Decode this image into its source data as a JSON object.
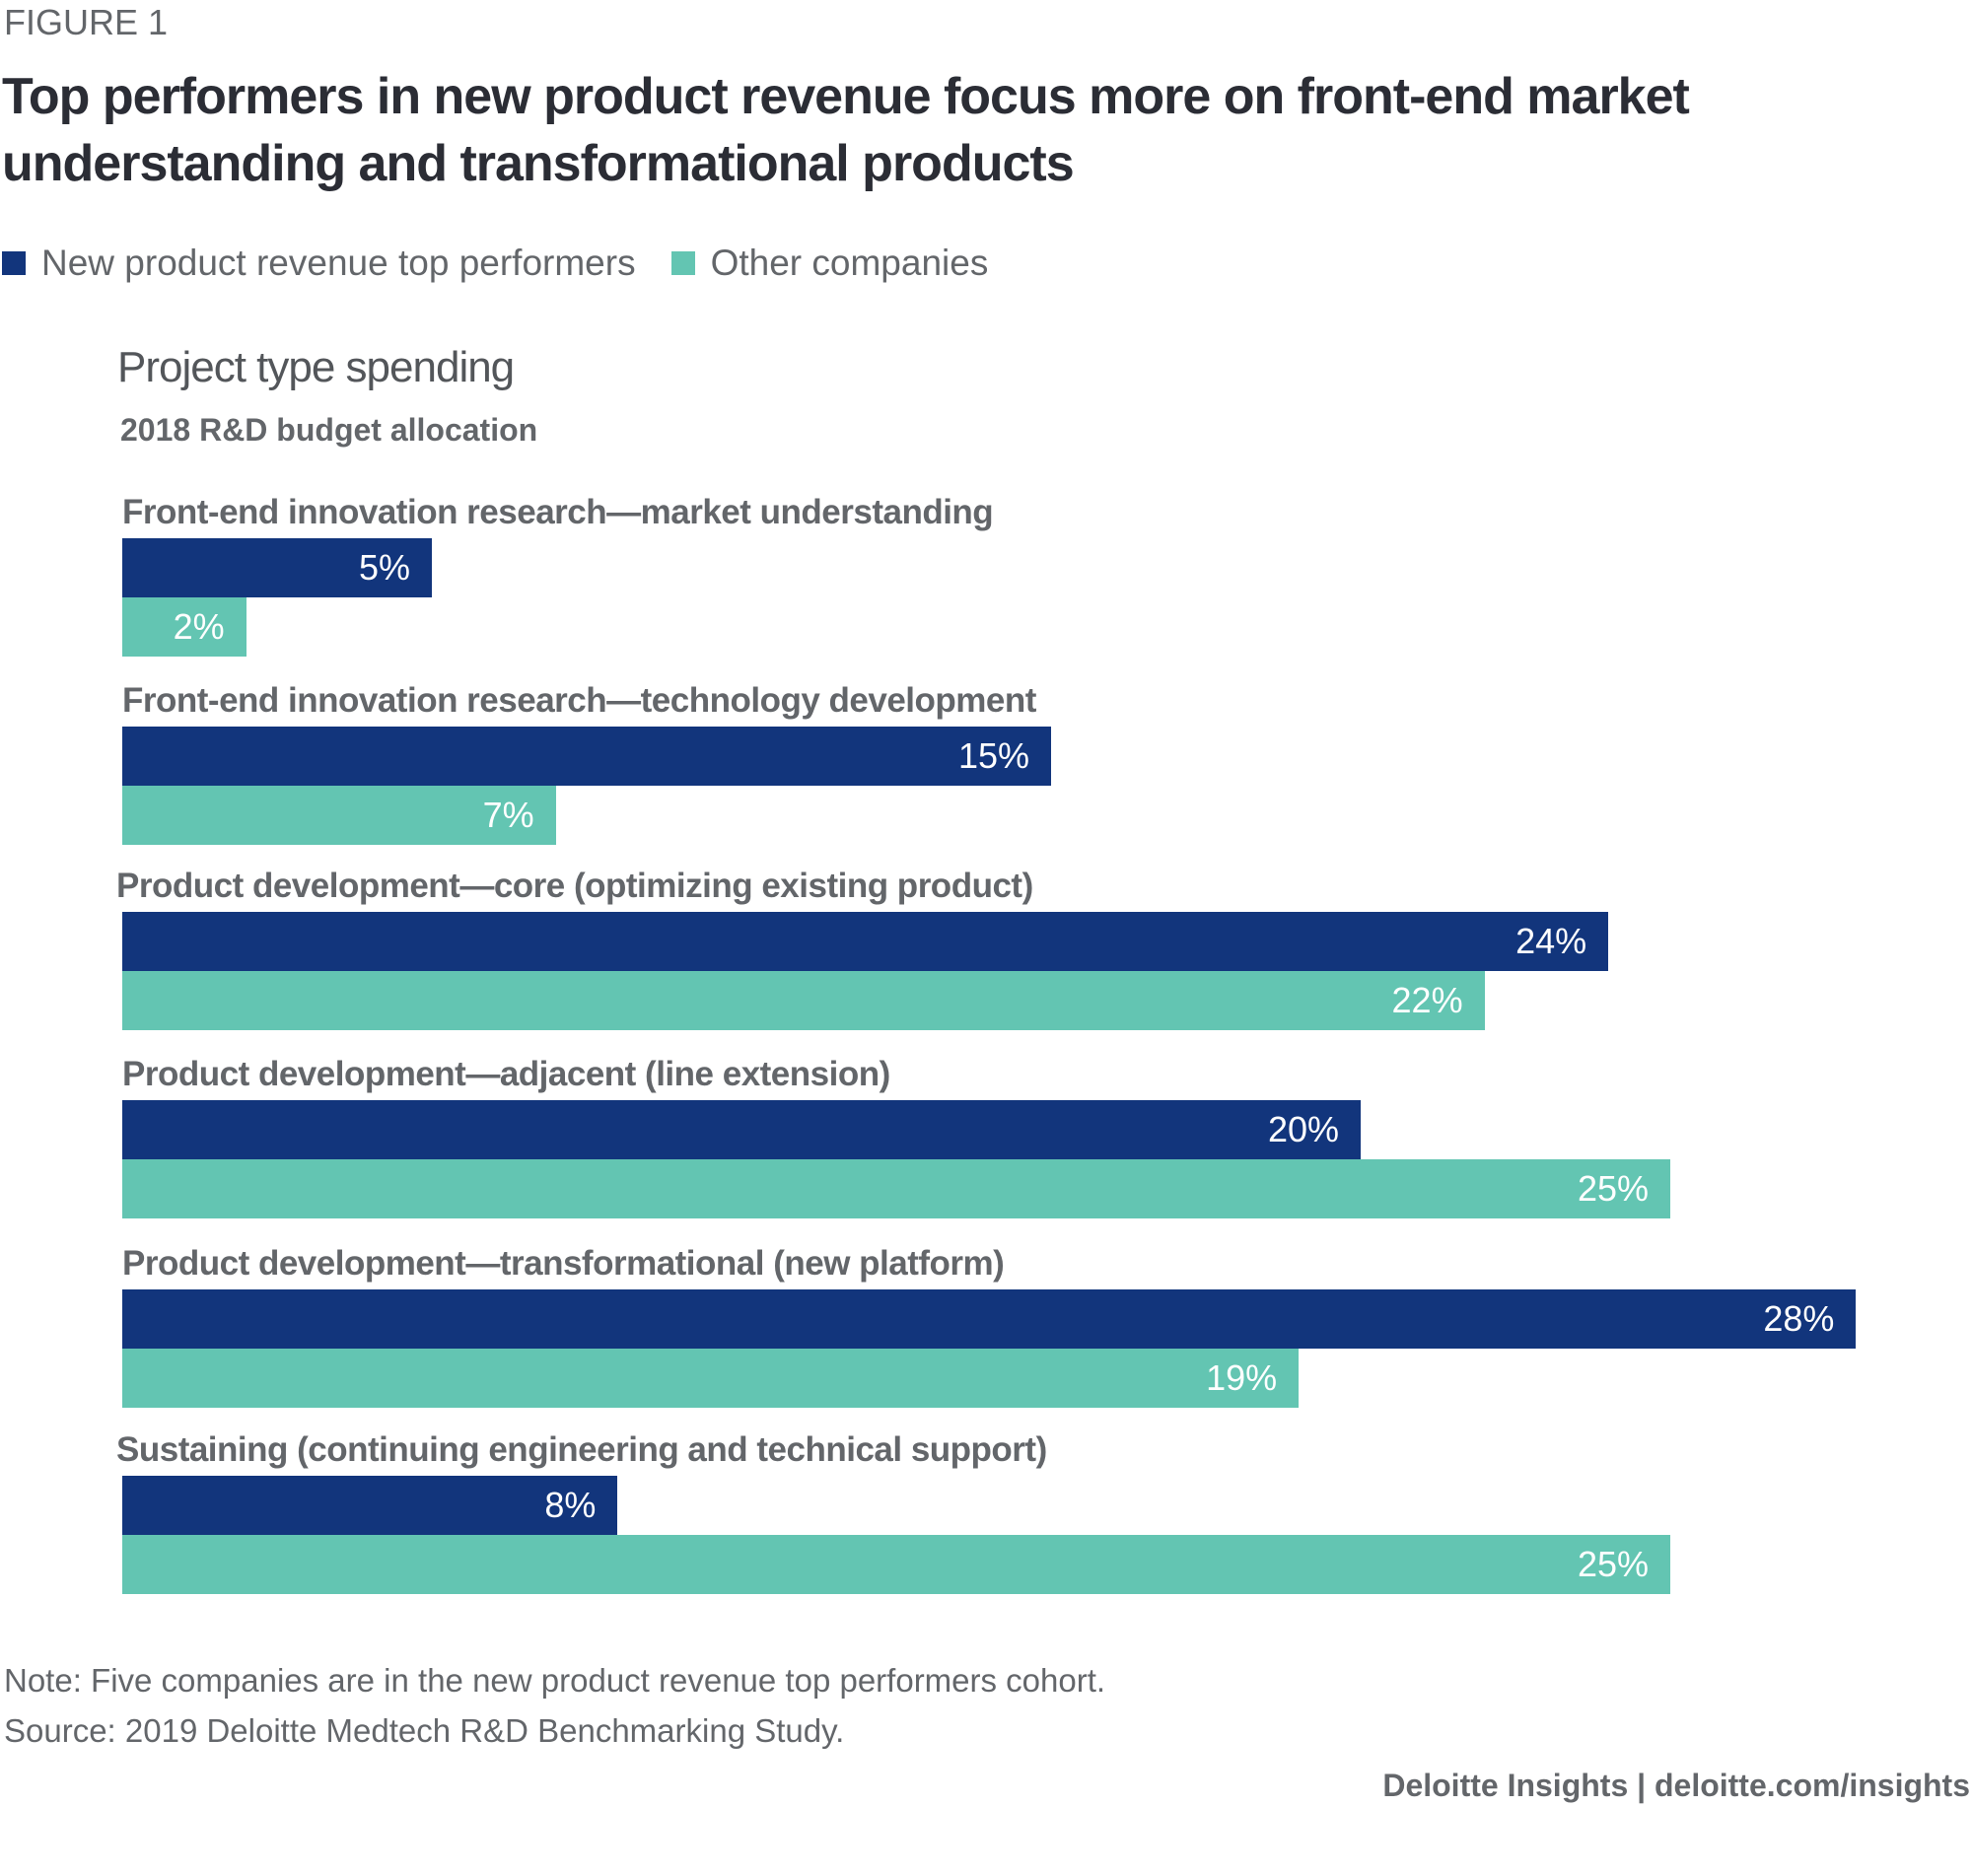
{
  "figure_label": "FIGURE 1",
  "title_lines": [
    "Top performers in new product revenue focus more on front-end market",
    "understanding and transformational products"
  ],
  "legend": [
    {
      "label": "New product revenue top performers",
      "color": "#12357c"
    },
    {
      "label": "Other companies",
      "color": "#63c5b2"
    }
  ],
  "panel": {
    "title": "Project type spending",
    "subtitle": "2018 R&D budget allocation"
  },
  "footer": {
    "note": "Note: Five companies are in the new product revenue top performers cohort.",
    "source": "Source: 2019 Deloitte Medtech R&D Benchmarking Study.",
    "credit": "Deloitte Insights | deloitte.com/insights"
  },
  "chart_data": {
    "type": "bar",
    "orientation": "horizontal",
    "title": "Project type spending",
    "subtitle": "2018 R&D budget allocation",
    "xlabel": "",
    "ylabel": "",
    "unit": "%",
    "xlim": [
      0,
      28
    ],
    "grid": false,
    "legend_position": "top-left",
    "categories": [
      "Front-end innovation research—market understanding",
      "Front-end innovation research—technology development",
      "Product development—core (optimizing existing product)",
      "Product development—adjacent (line extension)",
      "Product development—transformational (new platform)",
      "Sustaining (continuing engineering and technical support)"
    ],
    "series": [
      {
        "name": "New product revenue top performers",
        "color": "#12357c",
        "values": [
          5,
          15,
          24,
          20,
          28,
          8
        ]
      },
      {
        "name": "Other companies",
        "color": "#63c5b2",
        "values": [
          2,
          7,
          22,
          25,
          19,
          25
        ]
      }
    ]
  }
}
